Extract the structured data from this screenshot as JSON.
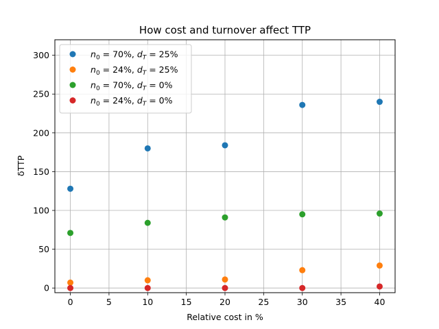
{
  "chart_data": {
    "type": "scatter",
    "title": "How cost and turnover affect TTP",
    "xlabel": "Relative cost in %",
    "ylabel": "δTTP",
    "xlim": [
      -2,
      42
    ],
    "ylim": [
      -6,
      320
    ],
    "xticks": [
      0,
      5,
      10,
      15,
      20,
      25,
      30,
      35,
      40
    ],
    "yticks": [
      0,
      50,
      100,
      150,
      200,
      250,
      300
    ],
    "grid": true,
    "legend_position": "upper-left",
    "series": [
      {
        "name": "n0 = 70%, dT = 25%",
        "legend_parts": {
          "n_sub": "0",
          "n_val": " = 70%, ",
          "d_sub": "T",
          "d_val": " = 25%"
        },
        "color": "#1f77b4",
        "x": [
          0,
          10,
          20,
          30,
          40
        ],
        "y": [
          128,
          180,
          184,
          236,
          240
        ]
      },
      {
        "name": "n0 = 24%, dT = 25%",
        "legend_parts": {
          "n_sub": "0",
          "n_val": " = 24%, ",
          "d_sub": "T",
          "d_val": " = 25%"
        },
        "color": "#ff7f0e",
        "x": [
          0,
          10,
          20,
          30,
          40
        ],
        "y": [
          7,
          10,
          11,
          23,
          29
        ]
      },
      {
        "name": "n0 = 70%, dT = 0%",
        "legend_parts": {
          "n_sub": "0",
          "n_val": " = 70%, ",
          "d_sub": "T",
          "d_val": " = 0%"
        },
        "color": "#2ca02c",
        "x": [
          0,
          10,
          20,
          30,
          40
        ],
        "y": [
          71,
          84,
          91,
          95,
          96
        ]
      },
      {
        "name": "n0 = 24%, dT = 0%",
        "legend_parts": {
          "n_sub": "0",
          "n_val": " = 24%, ",
          "d_sub": "T",
          "d_val": " = 0%"
        },
        "color": "#d62728",
        "x": [
          0,
          10,
          20,
          30,
          40
        ],
        "y": [
          0,
          0,
          0,
          0,
          2
        ]
      }
    ]
  }
}
